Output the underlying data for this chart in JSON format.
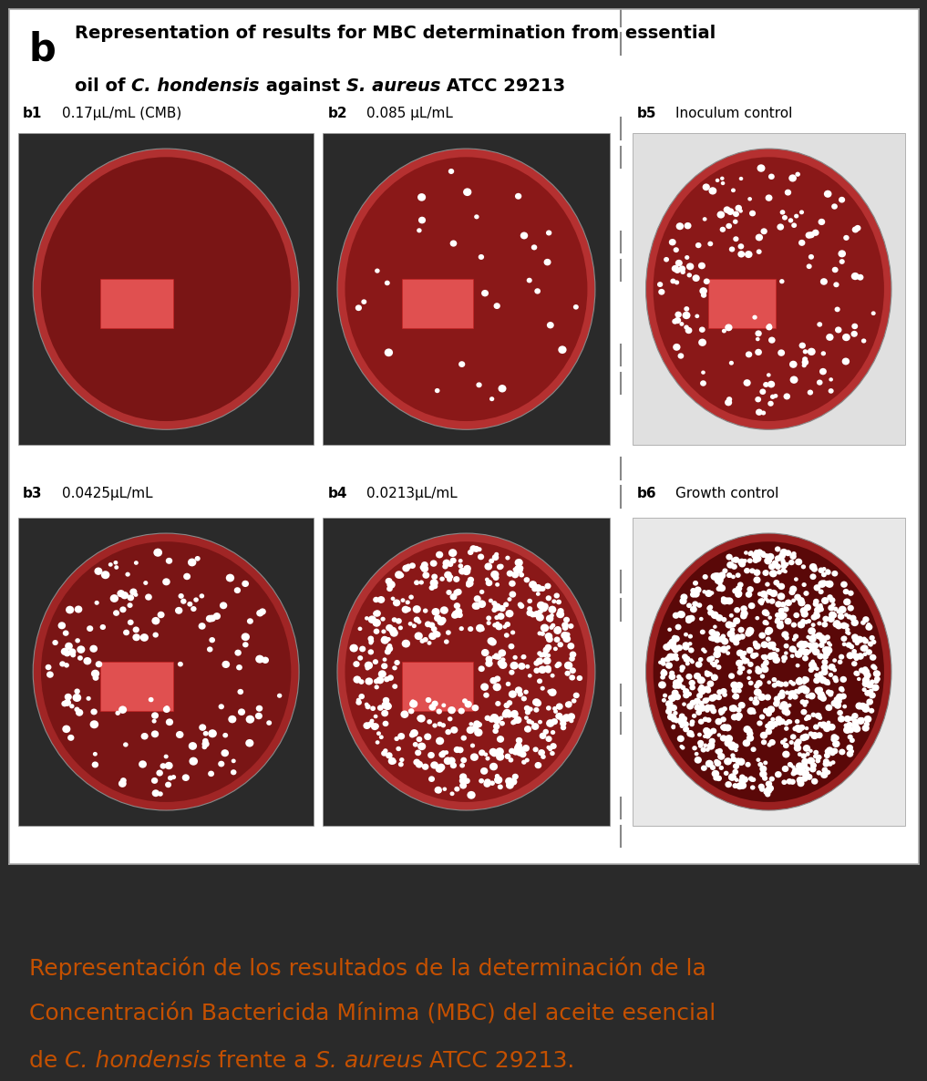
{
  "background_color": "#2a2a2a",
  "panel_bg": "#ffffff",
  "panel_border": "#aaaaaa",
  "title_b": "b",
  "title_line1": "Representation of results for MBC determination from essential",
  "title_line2_pre": "oil of ",
  "title_italic1": "C. hondensis",
  "title_line2_mid": " against ",
  "title_italic2": "S. aureus",
  "title_line2_end": " ATCC 29213",
  "panels": [
    {
      "id": "b1",
      "label": "b1",
      "sublabel": "0.17μL/mL (CMB)",
      "col": 0,
      "row": 0,
      "colony_density": 0,
      "has_label_rect": true,
      "frame_bg": "#2a2a2a",
      "agar_color": "#7a1515",
      "rim_color": "#b03030"
    },
    {
      "id": "b2",
      "label": "b2",
      "sublabel": "0.085 μL/mL",
      "col": 1,
      "row": 0,
      "colony_density": 1,
      "has_label_rect": true,
      "frame_bg": "#2a2a2a",
      "agar_color": "#8a1818",
      "rim_color": "#b53030"
    },
    {
      "id": "b5",
      "label": "b5",
      "sublabel": "Inoculum control",
      "col": 2,
      "row": 0,
      "colony_density": 2,
      "has_label_rect": true,
      "frame_bg": "#e0e0e0",
      "agar_color": "#8a1818",
      "rim_color": "#b53030"
    },
    {
      "id": "b3",
      "label": "b3",
      "sublabel": "0.0425μL/mL",
      "col": 0,
      "row": 1,
      "colony_density": 2,
      "has_label_rect": true,
      "frame_bg": "#2a2a2a",
      "agar_color": "#7a1515",
      "rim_color": "#a02525"
    },
    {
      "id": "b4",
      "label": "b4",
      "sublabel": "0.0213μL/mL",
      "col": 1,
      "row": 1,
      "colony_density": 3,
      "has_label_rect": true,
      "frame_bg": "#2a2a2a",
      "agar_color": "#8a1818",
      "rim_color": "#b03030"
    },
    {
      "id": "b6",
      "label": "b6",
      "sublabel": "Growth control",
      "col": 2,
      "row": 1,
      "colony_density": 4,
      "has_label_rect": false,
      "frame_bg": "#e8e8e8",
      "agar_color": "#5a0808",
      "rim_color": "#9a2020"
    }
  ],
  "caption_line1": "Representación de los resultados de la determinación de la",
  "caption_line2": "Concentración Bactericida Mínima (MBC) del aceite esencial",
  "caption_line3_pre": "de ",
  "caption_italic1": "C. hondensis",
  "caption_line3_mid": " frente a ",
  "caption_italic2": "S. aureus",
  "caption_line3_end": " ATCC 29213.",
  "caption_color": "#c45000",
  "caption_fontsize": 18
}
